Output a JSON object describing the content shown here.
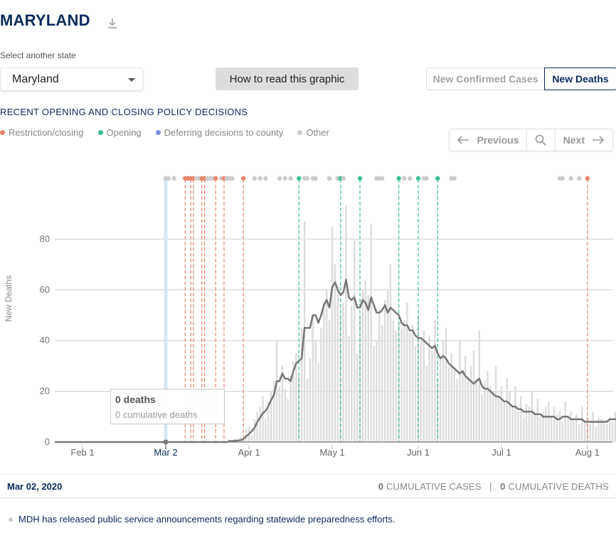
{
  "header": {
    "title": "MARYLAND"
  },
  "state_select": {
    "label": "Select another state",
    "value": "Maryland"
  },
  "how_to_read": "How to read this graphic",
  "toggle": {
    "cases": "New Confirmed Cases",
    "deaths": "New Deaths",
    "active": "deaths"
  },
  "policy": {
    "heading": "RECENT OPENING AND CLOSING POLICY DECISIONS",
    "legend": [
      {
        "label": "Restriction/closing",
        "color": "#e8856a"
      },
      {
        "label": "Opening",
        "color": "#3dbf9a"
      },
      {
        "label": "Deferring decisions to county",
        "color": "#7b8ee8"
      },
      {
        "label": "Other",
        "color": "#cccccc"
      }
    ]
  },
  "nav": {
    "previous": "Previous",
    "next": "Next"
  },
  "tooltip": {
    "deaths": "0 deaths",
    "cumulative": "0 cumulative deaths"
  },
  "footer": {
    "date": "Mar 02, 2020",
    "cum_cases_value": "0",
    "cum_cases_label": "CUMULATIVE CASES",
    "separator": "|",
    "cum_deaths_value": "0",
    "cum_deaths_label": "CUMULATIVE DEATHS"
  },
  "note": "MDH has released public service announcements regarding statewide preparedness efforts.",
  "chart_data": {
    "type": "bar",
    "ylabel": "New Deaths",
    "xlabel": "",
    "ylim": [
      0,
      93
    ],
    "yticks": [
      0,
      20,
      40,
      60,
      80
    ],
    "x_start": "2020-01-22",
    "x_end": "2020-08-10",
    "xticks": [
      {
        "date": "2020-02-01",
        "label": "Feb 1"
      },
      {
        "date": "2020-03-02",
        "label": "Mar 2"
      },
      {
        "date": "2020-04-01",
        "label": "Apr 1"
      },
      {
        "date": "2020-05-01",
        "label": "May 1"
      },
      {
        "date": "2020-06-01",
        "label": "Jun 1"
      },
      {
        "date": "2020-07-01",
        "label": "Jul 1"
      },
      {
        "date": "2020-08-01",
        "label": "Aug 1"
      }
    ],
    "highlight_date": "2020-03-02",
    "daily_deaths_first_date": "2020-03-17",
    "daily_deaths": [
      0,
      0,
      0,
      0,
      0,
      0,
      0,
      0,
      1,
      0,
      1,
      0,
      2,
      1,
      5,
      6,
      3,
      9,
      12,
      14,
      18,
      9,
      16,
      20,
      24,
      40,
      22,
      30,
      21,
      17,
      26,
      32,
      35,
      26,
      45,
      87,
      25,
      33,
      50,
      40,
      31,
      45,
      55,
      60,
      48,
      85,
      70,
      62,
      50,
      55,
      93,
      42,
      54,
      80,
      35,
      50,
      60,
      64,
      58,
      86,
      38,
      40,
      52,
      46,
      56,
      60,
      70,
      48,
      44,
      47,
      45,
      48,
      55,
      43,
      46,
      38,
      50,
      40,
      44,
      30,
      42,
      36,
      48,
      25,
      33,
      40,
      45,
      30,
      35,
      28,
      25,
      40,
      28,
      34,
      26,
      30,
      36,
      25,
      44,
      19,
      24,
      28,
      22,
      20,
      30,
      18,
      22,
      16,
      25,
      20,
      14,
      22,
      12,
      18,
      10,
      15,
      14,
      20,
      12,
      17,
      10,
      12,
      14,
      16,
      10,
      14,
      11,
      12,
      8,
      16,
      10,
      12,
      9,
      11,
      7,
      14,
      8,
      10,
      7,
      12,
      6,
      10,
      9,
      8,
      7,
      10,
      8,
      12,
      6,
      9,
      7,
      10,
      8,
      11,
      9,
      20,
      8,
      12,
      6,
      10,
      9,
      11,
      8,
      10
    ],
    "moving_average": [
      0,
      0,
      0,
      0,
      0,
      0,
      0,
      0,
      0.4,
      0.4,
      0.6,
      0.6,
      0.8,
      1.2,
      2.3,
      3.2,
      4.3,
      5.6,
      8,
      9.6,
      11.4,
      12.3,
      14.2,
      16.6,
      18.6,
      24,
      24,
      27,
      25,
      25,
      24,
      28,
      31,
      32,
      33,
      45,
      45,
      45,
      50,
      50,
      47,
      50,
      54,
      56,
      53,
      61,
      63,
      60,
      58,
      59,
      64,
      57,
      56,
      57,
      53,
      53,
      56,
      55,
      52,
      57,
      54,
      51,
      51,
      52,
      54,
      51,
      53,
      52,
      51,
      50,
      47,
      46,
      46,
      44,
      44,
      42,
      41,
      41,
      40,
      39,
      38,
      37,
      38,
      35,
      33,
      34,
      33,
      31,
      30,
      29,
      28,
      27,
      28,
      26,
      25,
      24,
      23,
      24,
      25,
      22,
      21,
      21,
      20,
      19,
      18,
      18,
      17,
      16,
      16,
      15,
      14,
      14,
      13,
      13,
      12,
      12,
      12,
      12,
      11,
      11,
      11,
      10,
      10,
      10,
      10,
      10,
      9,
      9,
      10,
      10,
      10,
      9,
      9,
      9,
      9,
      9,
      8,
      8,
      8,
      8,
      8,
      8,
      8,
      8,
      8,
      9,
      9,
      9,
      9,
      9,
      9,
      10,
      10,
      10,
      10,
      10,
      10,
      10,
      10,
      10,
      10,
      10
    ],
    "policy_events": [
      {
        "date": "2020-03-02",
        "type": "other"
      },
      {
        "date": "2020-03-03",
        "type": "other"
      },
      {
        "date": "2020-03-05",
        "type": "other"
      },
      {
        "date": "2020-03-09",
        "type": "restriction",
        "line": true
      },
      {
        "date": "2020-03-10",
        "type": "restriction"
      },
      {
        "date": "2020-03-11",
        "type": "restriction",
        "line": true
      },
      {
        "date": "2020-03-12",
        "type": "restriction",
        "line": true
      },
      {
        "date": "2020-03-13",
        "type": "other"
      },
      {
        "date": "2020-03-14",
        "type": "other"
      },
      {
        "date": "2020-03-15",
        "type": "restriction",
        "line": true
      },
      {
        "date": "2020-03-16",
        "type": "restriction",
        "line": true
      },
      {
        "date": "2020-03-17",
        "type": "other"
      },
      {
        "date": "2020-03-18",
        "type": "other"
      },
      {
        "date": "2020-03-19",
        "type": "other"
      },
      {
        "date": "2020-03-20",
        "type": "restriction",
        "line": true
      },
      {
        "date": "2020-03-22",
        "type": "other"
      },
      {
        "date": "2020-03-23",
        "type": "restriction",
        "line": true
      },
      {
        "date": "2020-03-24",
        "type": "other"
      },
      {
        "date": "2020-03-25",
        "type": "other"
      },
      {
        "date": "2020-03-26",
        "type": "other"
      },
      {
        "date": "2020-03-30",
        "type": "restriction",
        "line": true
      },
      {
        "date": "2020-04-03",
        "type": "other"
      },
      {
        "date": "2020-04-05",
        "type": "other"
      },
      {
        "date": "2020-04-07",
        "type": "other"
      },
      {
        "date": "2020-04-12",
        "type": "other"
      },
      {
        "date": "2020-04-14",
        "type": "other"
      },
      {
        "date": "2020-04-16",
        "type": "other"
      },
      {
        "date": "2020-04-19",
        "type": "opening",
        "line": true
      },
      {
        "date": "2020-04-21",
        "type": "other"
      },
      {
        "date": "2020-04-22",
        "type": "other"
      },
      {
        "date": "2020-04-24",
        "type": "other"
      },
      {
        "date": "2020-04-25",
        "type": "other"
      },
      {
        "date": "2020-04-30",
        "type": "other"
      },
      {
        "date": "2020-05-03",
        "type": "other"
      },
      {
        "date": "2020-05-04",
        "type": "opening",
        "line": true
      },
      {
        "date": "2020-05-05",
        "type": "other"
      },
      {
        "date": "2020-05-11",
        "type": "opening",
        "line": true
      },
      {
        "date": "2020-05-17",
        "type": "other"
      },
      {
        "date": "2020-05-18",
        "type": "other"
      },
      {
        "date": "2020-05-19",
        "type": "other"
      },
      {
        "date": "2020-05-25",
        "type": "opening",
        "line": true
      },
      {
        "date": "2020-05-27",
        "type": "other"
      },
      {
        "date": "2020-05-29",
        "type": "other"
      },
      {
        "date": "2020-06-01",
        "type": "opening",
        "line": true
      },
      {
        "date": "2020-06-03",
        "type": "other"
      },
      {
        "date": "2020-06-04",
        "type": "other"
      },
      {
        "date": "2020-06-08",
        "type": "opening",
        "line": true
      },
      {
        "date": "2020-06-13",
        "type": "other"
      },
      {
        "date": "2020-06-14",
        "type": "other"
      },
      {
        "date": "2020-07-22",
        "type": "other"
      },
      {
        "date": "2020-07-23",
        "type": "other"
      },
      {
        "date": "2020-07-26",
        "type": "other"
      },
      {
        "date": "2020-07-29",
        "type": "other"
      },
      {
        "date": "2020-08-01",
        "type": "restriction",
        "line": true
      }
    ]
  }
}
